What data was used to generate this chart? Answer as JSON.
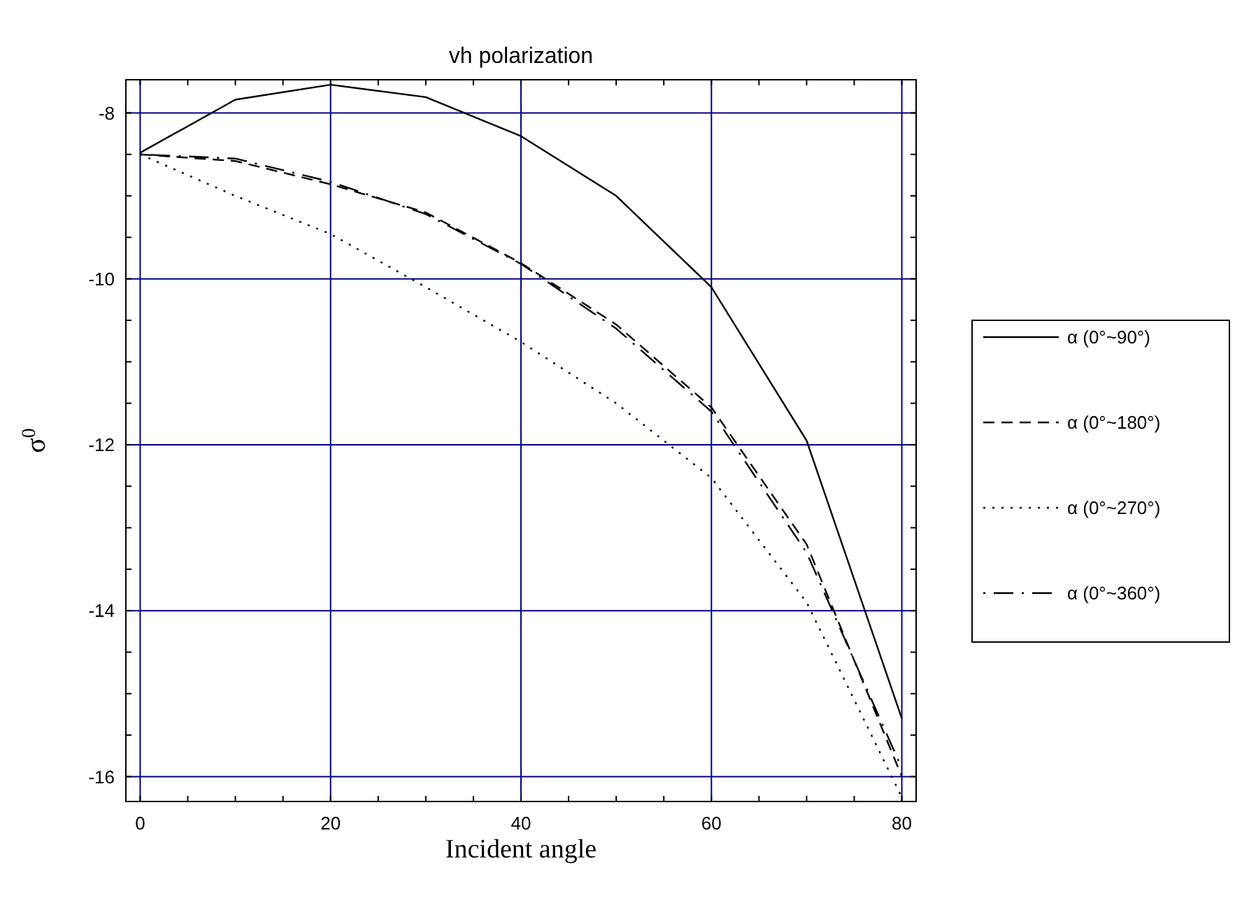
{
  "chart_data": {
    "type": "line",
    "title": "vh polarization",
    "xlabel": "Incident angle",
    "ylabel": "σ$^{0}$",
    "x": [
      0,
      10,
      20,
      30,
      40,
      50,
      60,
      70,
      80
    ],
    "series": [
      {
        "name": "α (0°~90°)",
        "color": "#000000",
        "line_style": "solid",
        "values": [
          -8.48,
          -7.84,
          -7.66,
          -7.81,
          -8.28,
          -9.0,
          -10.1,
          -11.95,
          -15.3
        ]
      },
      {
        "name": "α (0°~180°)",
        "color": "#000000",
        "line_style": "dashed",
        "values": [
          -8.5,
          -8.58,
          -8.86,
          -9.2,
          -9.81,
          -10.55,
          -11.55,
          -13.2,
          -16.0
        ]
      },
      {
        "name": "α (0°~270°)",
        "color": "#000000",
        "line_style": "dotted",
        "values": [
          -8.5,
          -9.0,
          -9.46,
          -10.1,
          -10.76,
          -11.5,
          -12.4,
          -13.9,
          -16.25
        ]
      },
      {
        "name": "α (0°~360°)",
        "color": "#000000",
        "line_style": "dashdot",
        "values": [
          -8.5,
          -8.55,
          -8.83,
          -9.22,
          -9.82,
          -10.6,
          -11.6,
          -13.3,
          -15.9
        ]
      }
    ],
    "xlim": [
      -1.5,
      81.5
    ],
    "xticks": [
      0,
      20,
      40,
      60,
      80
    ],
    "ylim": [
      -16.3,
      -7.6
    ],
    "yticks": [
      -8,
      -10,
      -12,
      -14,
      -16
    ],
    "grid": true,
    "legend": "right",
    "marker": "none"
  }
}
